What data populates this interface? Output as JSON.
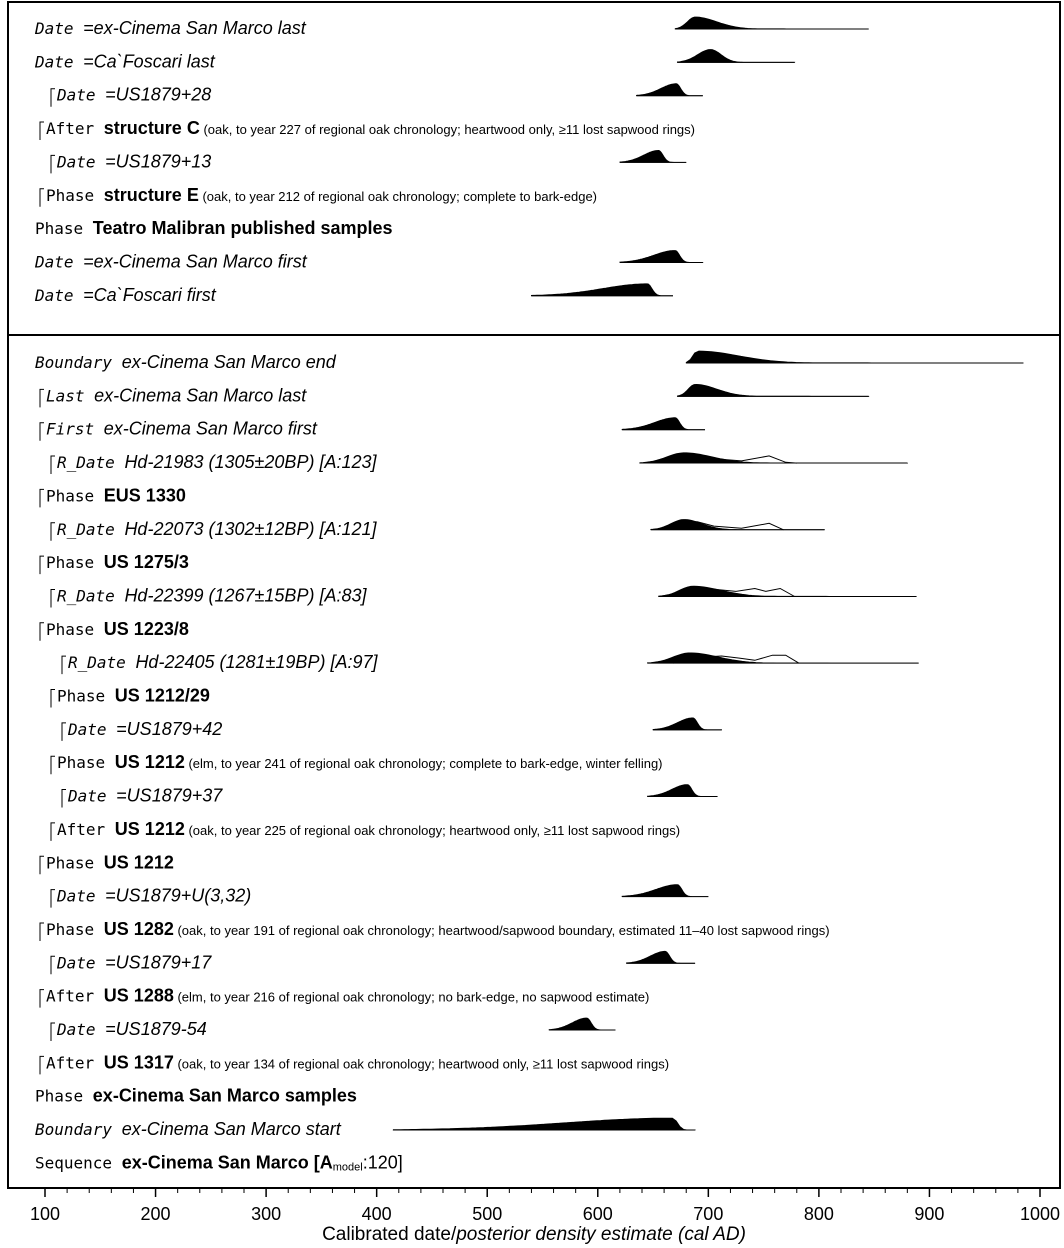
{
  "chart_data": {
    "type": "oxcal-multiplot",
    "xlabel_plain": "Calibrated date/",
    "xlabel_italic": "posterior density estimate (cal AD)",
    "xlim": [
      80,
      1005
    ],
    "ticks": [
      100,
      200,
      300,
      400,
      500,
      600,
      700,
      800,
      900,
      1000
    ],
    "tick_labels": [
      "100",
      "200",
      "300",
      "400",
      "500",
      "600",
      "700",
      "800",
      "900",
      "1000"
    ],
    "panels": [
      {
        "rows": [
          {
            "keyword": "Date",
            "name": "=ex-Cinema San Marco last",
            "italic": true,
            "indent": 0,
            "dist": {
              "start": 670,
              "end": 845,
              "peak": 688,
              "filled": true,
              "height": 0.7
            }
          },
          {
            "keyword": "Date",
            "name": "=Ca`Foscari last",
            "italic": true,
            "indent": 0,
            "dist": {
              "start": 672,
              "end": 778,
              "peak": 702,
              "filled": true,
              "height": 0.75
            }
          },
          {
            "keyword": "Date",
            "name": "=US1879+28",
            "italic": true,
            "indent": 2,
            "dist": {
              "start": 635,
              "end": 695,
              "peak": 671,
              "filled": true,
              "height": 0.7
            }
          },
          {
            "keyword": "After",
            "name": "structure C",
            "note": "(oak, to year 227 of regional oak chronology; heartwood only, ≥11 lost sapwood rings)",
            "italic": false,
            "indent": 1
          },
          {
            "keyword": "Date",
            "name": "=US1879+13",
            "italic": true,
            "indent": 2,
            "dist": {
              "start": 620,
              "end": 680,
              "peak": 655,
              "filled": true,
              "height": 0.7
            }
          },
          {
            "keyword": "Phase",
            "name": "structure E",
            "note": "(oak, to year 212 of regional oak chronology; complete to bark-edge)",
            "italic": false,
            "indent": 1
          },
          {
            "keyword": "Phase",
            "name": "Teatro Malibran published samples",
            "italic": false,
            "indent": 0
          },
          {
            "keyword": "Date",
            "name": "=ex-Cinema San Marco first",
            "italic": true,
            "indent": 0,
            "dist": {
              "start": 620,
              "end": 695,
              "peak": 670,
              "filled": true,
              "height": 0.7
            }
          },
          {
            "keyword": "Date",
            "name": "=Ca`Foscari first",
            "italic": true,
            "indent": 0,
            "dist": {
              "start": 540,
              "end": 668,
              "peak": 645,
              "filled": true,
              "height": 0.7
            }
          }
        ]
      },
      {
        "rows": [
          {
            "keyword": "Boundary",
            "name": "ex-Cinema San Marco end",
            "italic": true,
            "indent": 0,
            "dist": {
              "start": 680,
              "end": 985,
              "peak": 690,
              "filled": true,
              "height": 0.7
            }
          },
          {
            "keyword": "Last",
            "name": "ex-Cinema San Marco last",
            "italic": true,
            "indent": 1,
            "dist": {
              "start": 672,
              "end": 845,
              "peak": 688,
              "filled": true,
              "height": 0.7
            }
          },
          {
            "keyword": "First",
            "name": "ex-Cinema San Marco first",
            "italic": true,
            "indent": 1,
            "dist": {
              "start": 622,
              "end": 697,
              "peak": 670,
              "filled": true,
              "height": 0.7
            }
          },
          {
            "keyword": "R_Date",
            "name": "Hd-21983 (1305±20BP) [A:123]",
            "italic": true,
            "indent": 2,
            "dist": {
              "start": 638,
              "end": 880,
              "peak": 678,
              "filled": true,
              "height": 0.6,
              "prior": [
                [
                  660,
                  0
                ],
                [
                  672,
                  0.5
                ],
                [
                  690,
                  0.55
                ],
                [
                  705,
                  0.3
                ],
                [
                  730,
                  0.15
                ],
                [
                  755,
                  0.5
                ],
                [
                  770,
                  0.05
                ],
                [
                  780,
                  0
                ]
              ]
            }
          },
          {
            "keyword": "Phase",
            "name": "EUS 1330",
            "italic": false,
            "indent": 1
          },
          {
            "keyword": "R_Date",
            "name": "Hd-22073 (1302±12BP) [A:121]",
            "italic": true,
            "indent": 2,
            "dist": {
              "start": 648,
              "end": 805,
              "peak": 678,
              "filled": true,
              "height": 0.6,
              "prior": [
                [
                  668,
                  0
                ],
                [
                  676,
                  0.5
                ],
                [
                  690,
                  0.55
                ],
                [
                  705,
                  0.25
                ],
                [
                  730,
                  0.1
                ],
                [
                  755,
                  0.45
                ],
                [
                  768,
                  0
                ]
              ]
            }
          },
          {
            "keyword": "Phase",
            "name": "US 1275/3",
            "italic": false,
            "indent": 1
          },
          {
            "keyword": "R_Date",
            "name": "Hd-22399 (1267±15BP) [A:83]",
            "italic": true,
            "indent": 2,
            "dist": {
              "start": 655,
              "end": 888,
              "peak": 686,
              "filled": true,
              "height": 0.6,
              "prior": [
                [
                  675,
                  0
                ],
                [
                  690,
                  0.4
                ],
                [
                  705,
                  0.5
                ],
                [
                  725,
                  0.35
                ],
                [
                  742,
                  0.55
                ],
                [
                  752,
                  0.35
                ],
                [
                  765,
                  0.55
                ],
                [
                  778,
                  0
                ]
              ]
            }
          },
          {
            "keyword": "Phase",
            "name": "US 1223/8",
            "italic": false,
            "indent": 1
          },
          {
            "keyword": "R_Date",
            "name": "Hd-22405 (1281±19BP) [A:97]",
            "italic": true,
            "indent": 3,
            "dist": {
              "start": 645,
              "end": 890,
              "peak": 683,
              "filled": true,
              "height": 0.6,
              "prior": [
                [
                  668,
                  0
                ],
                [
                  690,
                  0.4
                ],
                [
                  712,
                  0.5
                ],
                [
                  728,
                  0.35
                ],
                [
                  742,
                  0.2
                ],
                [
                  758,
                  0.55
                ],
                [
                  770,
                  0.55
                ],
                [
                  782,
                  0
                ]
              ]
            }
          },
          {
            "keyword": "Phase",
            "name": "US 1212/29",
            "italic": false,
            "indent": 2
          },
          {
            "keyword": "Date",
            "name": "=US1879+42",
            "italic": true,
            "indent": 3,
            "dist": {
              "start": 650,
              "end": 712,
              "peak": 686,
              "filled": true,
              "height": 0.7
            }
          },
          {
            "keyword": "Phase",
            "name": "US 1212",
            "note": "(elm, to year 241 of regional oak chronology; complete to bark-edge, winter felling)",
            "italic": false,
            "indent": 2
          },
          {
            "keyword": "Date",
            "name": "=US1879+37",
            "italic": true,
            "indent": 3,
            "dist": {
              "start": 645,
              "end": 708,
              "peak": 681,
              "filled": true,
              "height": 0.7
            }
          },
          {
            "keyword": "After",
            "name": "US 1212",
            "note": "(oak, to year 225 of regional oak chronology; heartwood only, ≥11 lost sapwood rings)",
            "italic": false,
            "indent": 2
          },
          {
            "keyword": "Phase",
            "name": "US 1212",
            "italic": false,
            "indent": 1
          },
          {
            "keyword": "Date",
            "name": "=US1879+U(3,32)",
            "italic": true,
            "indent": 2,
            "dist": {
              "start": 622,
              "end": 700,
              "peak": 672,
              "filled": true,
              "height": 0.7
            }
          },
          {
            "keyword": "Phase",
            "name": "US 1282",
            "note": "(oak, to year 191 of regional oak chronology; heartwood/sapwood boundary, estimated 11–40 lost sapwood rings)",
            "italic": false,
            "indent": 1
          },
          {
            "keyword": "Date",
            "name": "=US1879+17",
            "italic": true,
            "indent": 2,
            "dist": {
              "start": 626,
              "end": 688,
              "peak": 661,
              "filled": true,
              "height": 0.7
            }
          },
          {
            "keyword": "After",
            "name": "US 1288",
            "note": "(elm, to year 216 of regional oak chronology; no bark-edge, no sapwood estimate)",
            "italic": false,
            "indent": 1
          },
          {
            "keyword": "Date",
            "name": "=US1879-54",
            "italic": true,
            "indent": 2,
            "dist": {
              "start": 556,
              "end": 616,
              "peak": 590,
              "filled": true,
              "height": 0.7
            }
          },
          {
            "keyword": "After",
            "name": "US 1317",
            "note": "(oak, to year 134 of regional oak chronology; heartwood only, ≥11 lost sapwood rings)",
            "italic": false,
            "indent": 1
          },
          {
            "keyword": "Phase",
            "name": "ex-Cinema San Marco samples",
            "italic": false,
            "indent": 0
          },
          {
            "keyword": "Boundary",
            "name": "ex-Cinema San Marco start",
            "italic": true,
            "indent": 0,
            "dist": {
              "start": 415,
              "end": 688,
              "peak": 668,
              "filled": true,
              "height": 0.7
            }
          },
          {
            "keyword": "Sequence",
            "name": "ex-Cinema San Marco [A",
            "model_sub": "model",
            "model_tail": ":120]",
            "italic": false,
            "indent": 0
          }
        ]
      }
    ]
  }
}
